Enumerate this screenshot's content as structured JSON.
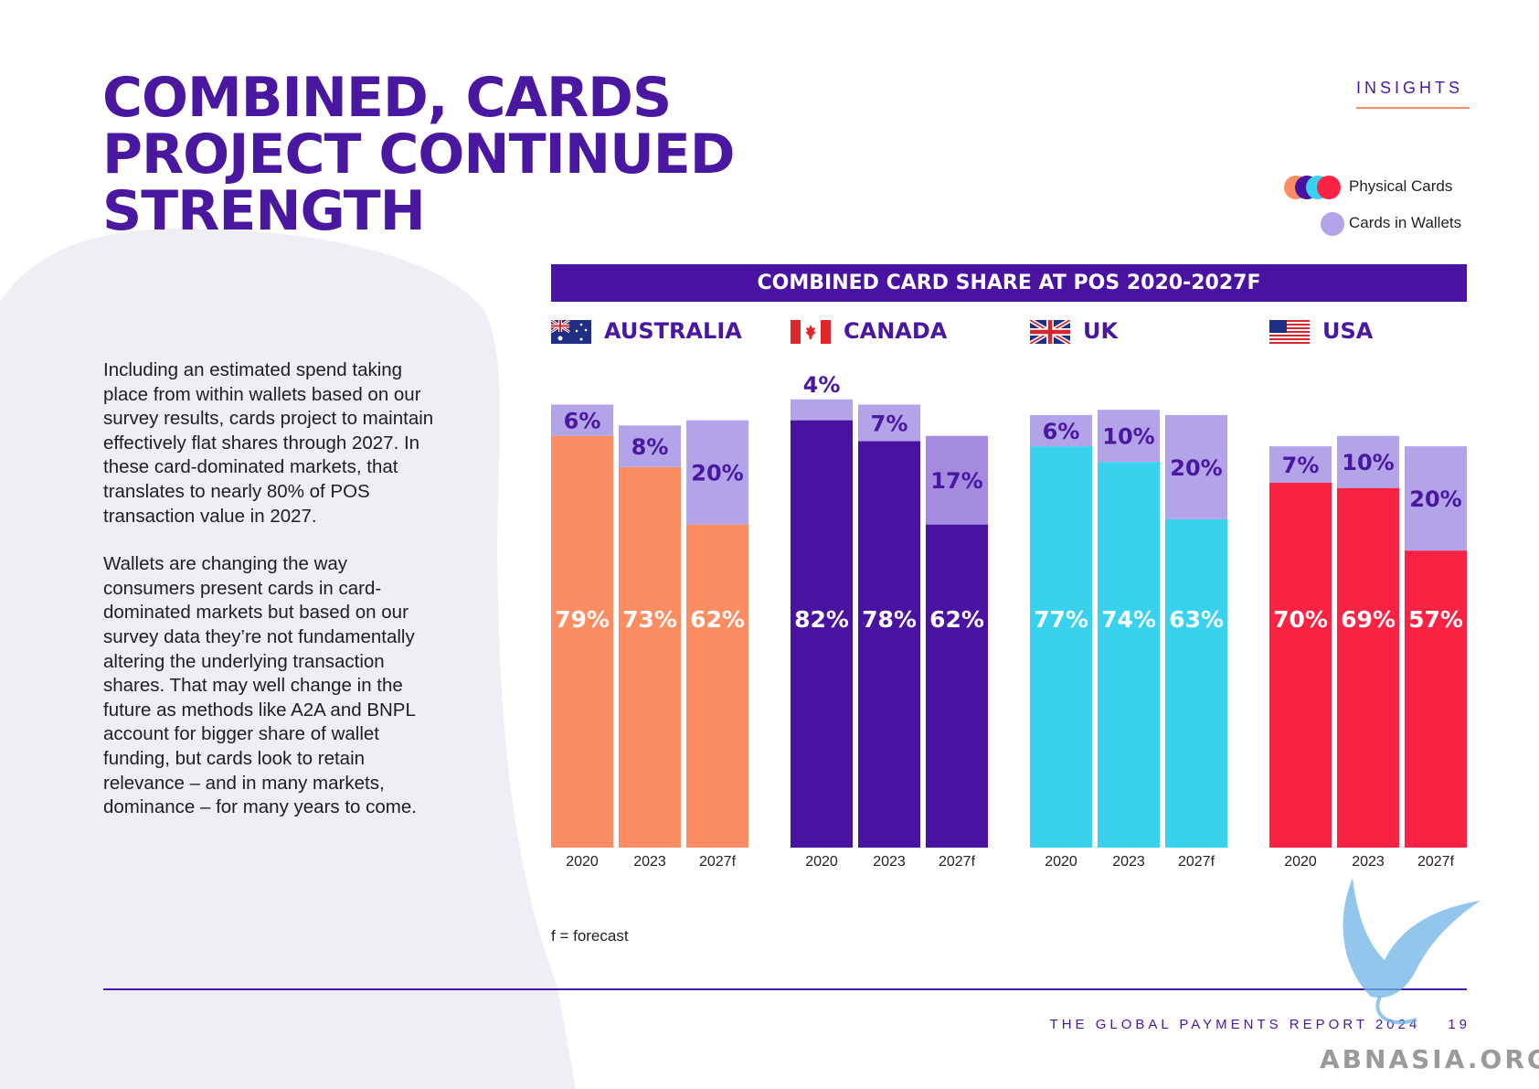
{
  "page": {
    "title_lines": [
      "COMBINED, CARDS",
      "PROJECT CONTINUED",
      "STRENGTH"
    ],
    "section_tag": "INSIGHTS",
    "paragraphs": [
      "Including an estimated spend taking place from within wallets based on our survey results, cards project to maintain effectively flat shares through 2027. In these card-dominated markets, that translates to nearly 80% of POS transaction value in 2027.",
      "Wallets are changing the way consumers present cards in card-dominated markets but based on our survey data they’re not fundamentally altering the underlying transaction shares. That may well change in the future as methods like A2A and BNPL account for bigger share of wallet funding, but cards look to retain relevance – and in many markets, dominance – for many years to come."
    ],
    "footnote": "f = forecast",
    "footer_label": "THE GLOBAL PAYMENTS REPORT 2024",
    "page_number": "19",
    "watermark": "ABNASIA.ORG"
  },
  "colors": {
    "brand_purple": "#4a17a0",
    "australia": "#fc8c62",
    "canada": "#4a12a1",
    "uk": "#38d2ee",
    "usa": "#fb2343",
    "wallets": "#b3a3e8",
    "wallets_on_dark": "#a48be0"
  },
  "chart_data": {
    "type": "bar",
    "stacked": true,
    "title": "COMBINED CARD SHARE AT POS 2020-2027F",
    "legend": {
      "placement": "top-right",
      "items": [
        {
          "name": "Physical Cards",
          "colors": [
            "#fc8c62",
            "#4a12a1",
            "#38d2ee",
            "#fb2343"
          ]
        },
        {
          "name": "Cards in Wallets",
          "colors": [
            "#b3a3e8"
          ]
        }
      ]
    },
    "categories": [
      "2020",
      "2023",
      "2027f"
    ],
    "ylim": [
      0,
      100
    ],
    "grid": false,
    "groups": [
      {
        "country": "AUSTRALIA",
        "flag": "au",
        "color": "#fc8c62",
        "physical": [
          79,
          73,
          62
        ],
        "wallets": [
          6,
          8,
          20
        ],
        "physical_labels": [
          "79%",
          "73%",
          "62%"
        ],
        "wallet_labels": [
          "6%",
          "8%",
          "20%"
        ]
      },
      {
        "country": "CANADA",
        "flag": "ca",
        "color": "#4a12a1",
        "physical": [
          82,
          78,
          62
        ],
        "wallets": [
          4,
          7,
          17
        ],
        "physical_labels": [
          "82%",
          "78%",
          "62%"
        ],
        "wallet_labels": [
          "4%",
          "7%",
          "17%"
        ]
      },
      {
        "country": "UK",
        "flag": "uk",
        "color": "#38d2ee",
        "physical": [
          77,
          74,
          63
        ],
        "wallets": [
          6,
          10,
          20
        ],
        "physical_labels": [
          "77%",
          "74%",
          "63%"
        ],
        "wallet_labels": [
          "6%",
          "10%",
          "20%"
        ]
      },
      {
        "country": "USA",
        "flag": "us",
        "color": "#fb2343",
        "physical": [
          70,
          69,
          57
        ],
        "wallets": [
          7,
          10,
          20
        ],
        "physical_labels": [
          "70%",
          "69%",
          "57%"
        ],
        "wallet_labels": [
          "7%",
          "10%",
          "20%"
        ]
      }
    ]
  }
}
